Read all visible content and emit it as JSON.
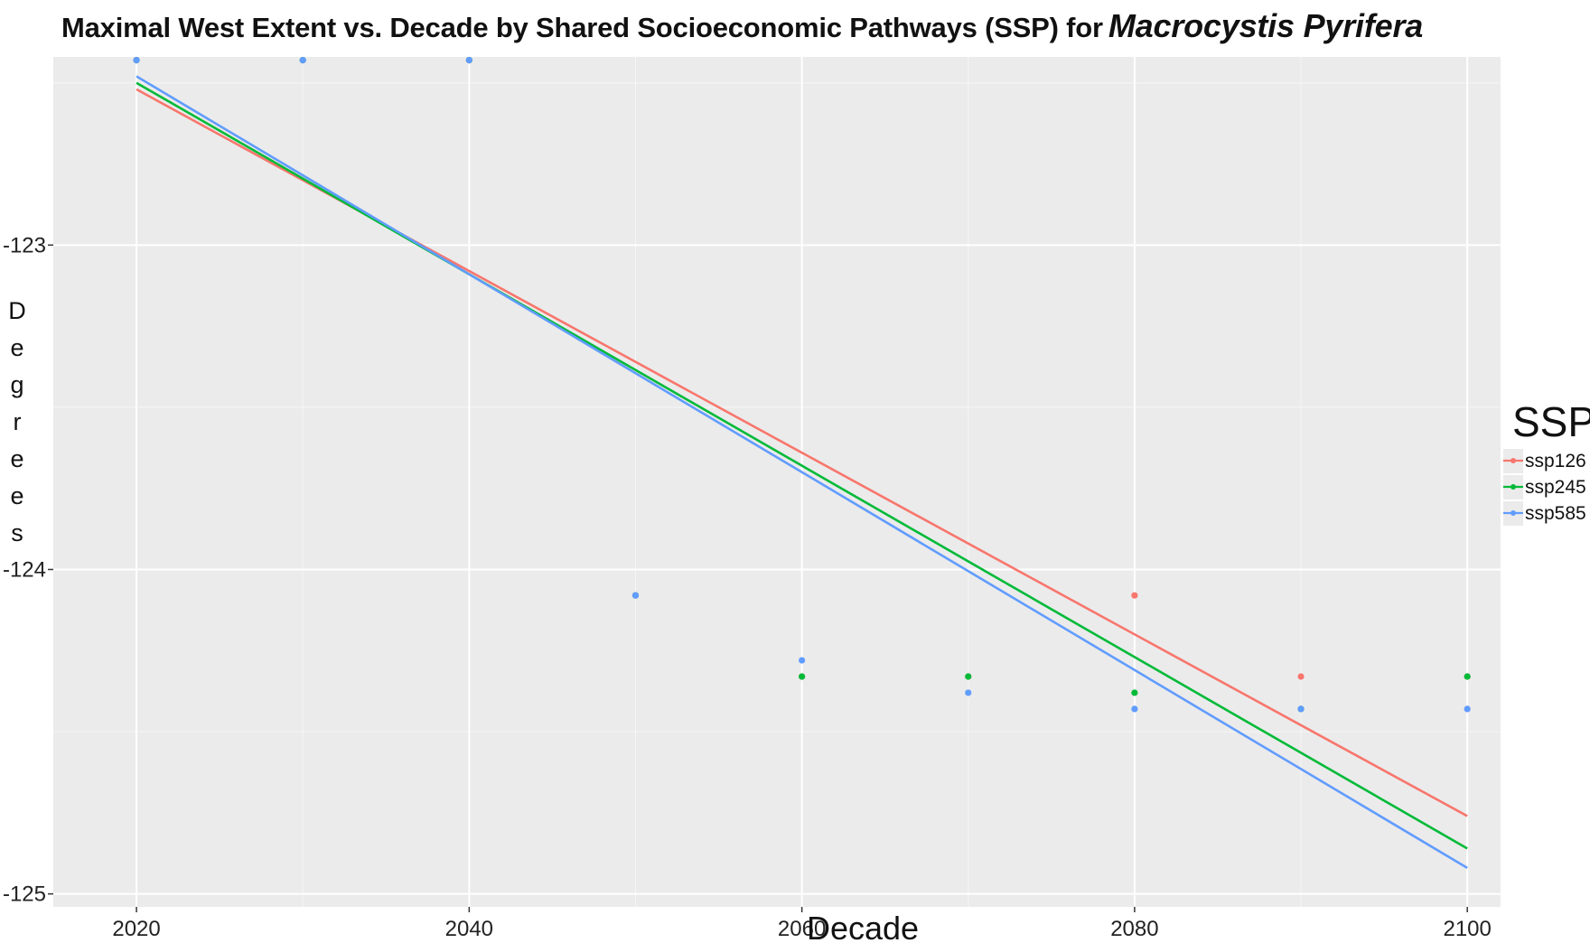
{
  "title": {
    "prefix": "Maximal West Extent vs. Decade by Shared Socioeconomic Pathways (SSP) for",
    "species": "Macrocystis Pyrifera"
  },
  "chart_data": {
    "type": "scatter",
    "xlabel": "Decade",
    "ylabel": "Degrees",
    "xlim": [
      2015,
      2102
    ],
    "ylim": [
      -125.04,
      -122.42
    ],
    "x_ticks": [
      2020,
      2040,
      2060,
      2080,
      2100
    ],
    "y_ticks": [
      -123,
      -124,
      -125
    ],
    "grid": true,
    "legend": {
      "title": "SSP",
      "placement": "right"
    },
    "series": [
      {
        "name": "ssp126",
        "color": "#F8766D",
        "points": [
          {
            "x": 2020,
            "y": -122.43
          },
          {
            "x": 2030,
            "y": -122.43
          },
          {
            "x": 2040,
            "y": -122.43
          },
          {
            "x": 2050,
            "y": -124.08
          },
          {
            "x": 2060,
            "y": -124.33
          },
          {
            "x": 2070,
            "y": -124.33
          },
          {
            "x": 2080,
            "y": -124.08
          },
          {
            "x": 2090,
            "y": -124.33
          },
          {
            "x": 2100,
            "y": -124.33
          }
        ],
        "trend": {
          "x": [
            2020,
            2100
          ],
          "y": [
            -122.52,
            -124.76
          ]
        }
      },
      {
        "name": "ssp245",
        "color": "#00BA38",
        "points": [
          {
            "x": 2020,
            "y": -122.43
          },
          {
            "x": 2030,
            "y": -122.43
          },
          {
            "x": 2040,
            "y": -122.43
          },
          {
            "x": 2050,
            "y": -124.08
          },
          {
            "x": 2060,
            "y": -124.33
          },
          {
            "x": 2070,
            "y": -124.33
          },
          {
            "x": 2080,
            "y": -124.38
          },
          {
            "x": 2090,
            "y": -124.43
          },
          {
            "x": 2100,
            "y": -124.33
          }
        ],
        "trend": {
          "x": [
            2020,
            2100
          ],
          "y": [
            -122.5,
            -124.86
          ]
        }
      },
      {
        "name": "ssp585",
        "color": "#619CFF",
        "points": [
          {
            "x": 2020,
            "y": -122.43
          },
          {
            "x": 2030,
            "y": -122.43
          },
          {
            "x": 2040,
            "y": -122.43
          },
          {
            "x": 2050,
            "y": -124.08
          },
          {
            "x": 2060,
            "y": -124.28
          },
          {
            "x": 2070,
            "y": -124.38
          },
          {
            "x": 2080,
            "y": -124.43
          },
          {
            "x": 2090,
            "y": -124.43
          },
          {
            "x": 2100,
            "y": -124.43
          }
        ],
        "trend": {
          "x": [
            2020,
            2100
          ],
          "y": [
            -122.48,
            -124.92
          ]
        }
      }
    ],
    "colors": {
      "panel_background": "#EBEBEB",
      "grid_line": "#FFFFFF"
    }
  }
}
